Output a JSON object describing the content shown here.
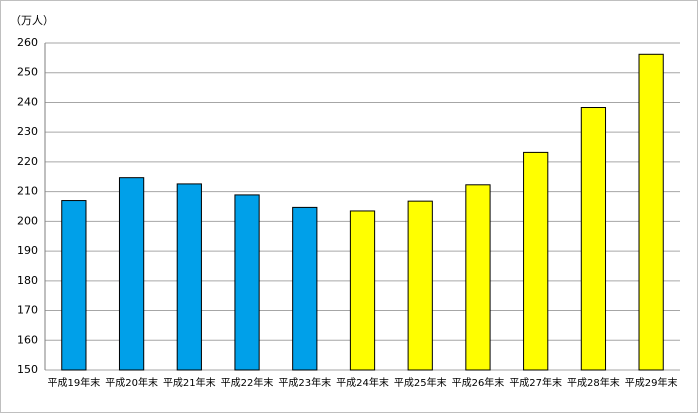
{
  "chart_data": {
    "type": "bar",
    "y_unit_label": "（万人）",
    "categories": [
      "平成19年末",
      "平成20年末",
      "平成21年末",
      "平成22年末",
      "平成23年末",
      "平成24年末",
      "平成25年末",
      "平成26年末",
      "平成27年末",
      "平成28年末",
      "平成29年末"
    ],
    "values": [
      207.0,
      214.7,
      212.6,
      208.9,
      204.7,
      203.5,
      206.8,
      212.3,
      223.2,
      238.3,
      256.2
    ],
    "colors": [
      "#00a0e9",
      "#00a0e9",
      "#00a0e9",
      "#00a0e9",
      "#00a0e9",
      "#ffff00",
      "#ffff00",
      "#ffff00",
      "#ffff00",
      "#ffff00",
      "#ffff00"
    ],
    "ylim": [
      150,
      260
    ],
    "yticks": [
      150,
      160,
      170,
      180,
      190,
      200,
      210,
      220,
      230,
      240,
      250,
      260
    ],
    "grid": true
  }
}
